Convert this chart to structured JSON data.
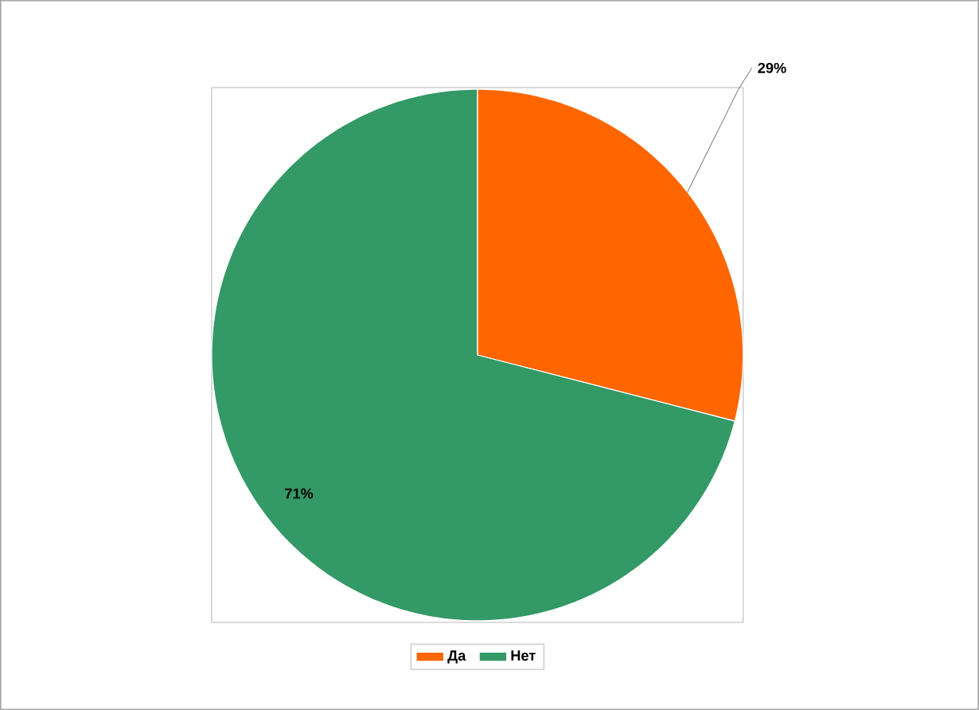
{
  "chart_data": {
    "type": "pie",
    "categories": [
      "Да",
      "Нет"
    ],
    "values": [
      29,
      71
    ],
    "colors": [
      "#ff6600",
      "#339966"
    ],
    "legend": "bottom",
    "value_labels": [
      "29%",
      "71%"
    ]
  }
}
